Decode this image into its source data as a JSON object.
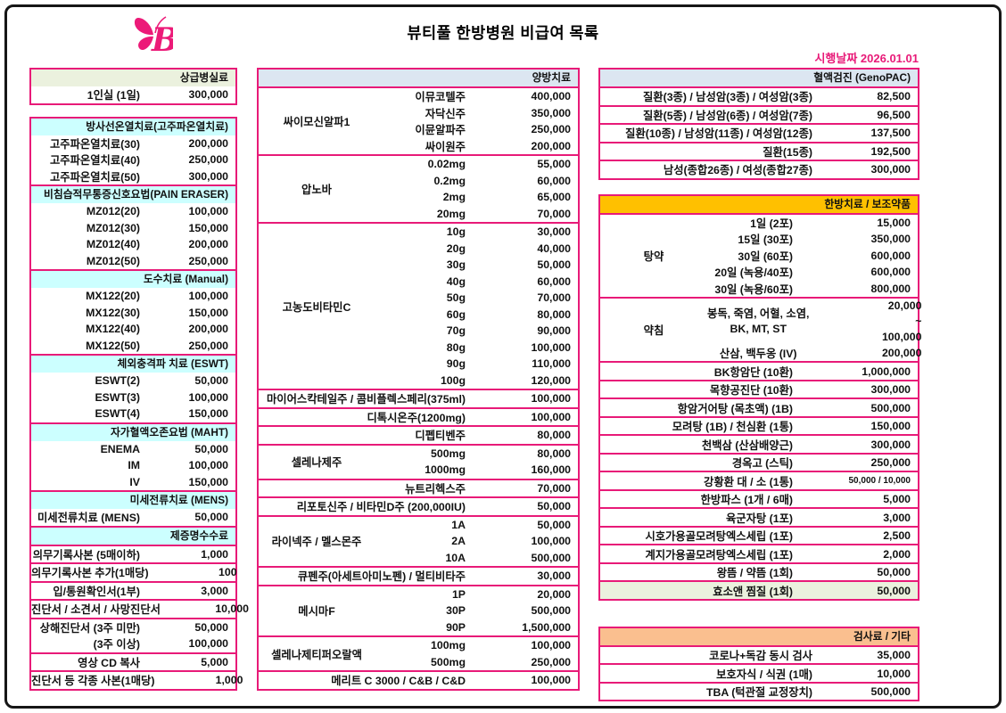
{
  "page": {
    "title": "뷰티풀 한방병원 비급여 목록",
    "effective_date_label": "시행날짜",
    "effective_date": "2026.01.01"
  },
  "colors": {
    "table_border": "#e81a78",
    "accent_text": "#e81a78",
    "logo_pink": "#ec1a78",
    "green": "#ebf1de",
    "cyan": "#ccffff",
    "blue": "#dce6f1",
    "orange": "#ffc000",
    "salmon": "#fabf8f",
    "text": "#111111"
  },
  "columns": [
    {
      "id": "left",
      "tables": [
        {
          "val": "93px",
          "blocks": [
            {
              "t": "sec",
              "h": "상급병실료",
              "bg": "green",
              "rows": [
                {
                  "l": "1인실 (1일)",
                  "v": "300,000"
                }
              ]
            }
          ]
        },
        {
          "val": "93px",
          "mt": 13,
          "blocks": [
            {
              "t": "sec",
              "h": "방사선온열치료(고주파온열치료)",
              "bg": "cyan",
              "rows": [
                {
                  "l": "고주파온열치료(30)",
                  "v": "200,000"
                },
                {
                  "l": "고주파온열치료(40)",
                  "v": "250,000"
                },
                {
                  "l": "고주파온열치료(50)",
                  "v": "300,000"
                }
              ]
            },
            {
              "t": "sec",
              "h": "비침습적무통증신호요법(PAIN ERASER)",
              "bg": "cyan",
              "rows": [
                {
                  "l": "MZ012(20)",
                  "v": "100,000"
                },
                {
                  "l": "MZ012(30)",
                  "v": "150,000"
                },
                {
                  "l": "MZ012(40)",
                  "v": "200,000"
                },
                {
                  "l": "MZ012(50)",
                  "v": "250,000"
                }
              ]
            },
            {
              "t": "sec",
              "h": "도수치료 (Manual)",
              "bg": "cyan",
              "rows": [
                {
                  "l": "MX122(20)",
                  "v": "100,000"
                },
                {
                  "l": "MX122(30)",
                  "v": "150,000"
                },
                {
                  "l": "MX122(40)",
                  "v": "200,000"
                },
                {
                  "l": "MX122(50)",
                  "v": "250,000"
                }
              ]
            },
            {
              "t": "sec",
              "h": "체외충격파 치료 (ESWT)",
              "bg": "cyan",
              "rows": [
                {
                  "l": "ESWT(2)",
                  "v": "50,000"
                },
                {
                  "l": "ESWT(3)",
                  "v": "100,000"
                },
                {
                  "l": "ESWT(4)",
                  "v": "150,000"
                }
              ]
            },
            {
              "t": "sec",
              "h": "자가혈액오존요법 (MAHT)",
              "bg": "cyan",
              "rows": [
                {
                  "l": "ENEMA",
                  "v": "50,000"
                },
                {
                  "l": "IM",
                  "v": "100,000"
                },
                {
                  "l": "IV",
                  "v": "150,000"
                }
              ]
            },
            {
              "t": "sec",
              "h": "미세전류치료 (MENS)",
              "bg": "cyan",
              "rows": [
                {
                  "l": "미세전류치료 (MENS)",
                  "v": "50,000"
                }
              ]
            },
            {
              "t": "h",
              "text": "제증명수수료",
              "bg": "cyan"
            },
            {
              "t": "r",
              "l": "의무기록사본 (5매이하)",
              "v": "1,000"
            },
            {
              "t": "r",
              "l": "의무기록사본 추가(1매당)",
              "v": "100"
            },
            {
              "t": "r",
              "l": "입/통원확인서(1부)",
              "v": "3,000"
            },
            {
              "t": "r",
              "l": "진단서 / 소견서 / 사망진단서",
              "v": "10,000"
            },
            {
              "t": "rs",
              "rows": [
                {
                  "l": "상해진단서 (3주 미만)",
                  "v": "50,000"
                },
                {
                  "l": "(3주 이상)",
                  "v": "100,000"
                }
              ]
            },
            {
              "t": "r",
              "l": "영상 CD 복사",
              "v": "5,000"
            },
            {
              "t": "r",
              "l": "진단서 등 각종 사본(1매당)",
              "v": "1,000"
            }
          ]
        }
      ]
    },
    {
      "id": "mid",
      "tables": [
        {
          "val": "112px",
          "grp": "130px",
          "blocks": [
            {
              "t": "h",
              "text": "양방치료",
              "bg": "blue"
            },
            {
              "t": "g",
              "name": "싸이모신알파1",
              "items": [
                {
                  "l": "이뮤코텔주",
                  "v": "400,000"
                },
                {
                  "l": "자닥신주",
                  "v": "350,000"
                },
                {
                  "l": "이뮨알파주",
                  "v": "250,000"
                },
                {
                  "l": "싸이원주",
                  "v": "200,000"
                }
              ]
            },
            {
              "t": "g",
              "name": "압노바",
              "items": [
                {
                  "l": "0.02mg",
                  "v": "55,000"
                },
                {
                  "l": "0.2mg",
                  "v": "60,000"
                },
                {
                  "l": "2mg",
                  "v": "65,000"
                },
                {
                  "l": "20mg",
                  "v": "70,000"
                }
              ]
            },
            {
              "t": "g",
              "name": "고농도비타민C",
              "items": [
                {
                  "l": "10g",
                  "v": "30,000"
                },
                {
                  "l": "20g",
                  "v": "40,000"
                },
                {
                  "l": "30g",
                  "v": "50,000"
                },
                {
                  "l": "40g",
                  "v": "60,000"
                },
                {
                  "l": "50g",
                  "v": "70,000"
                },
                {
                  "l": "60g",
                  "v": "80,000"
                },
                {
                  "l": "70g",
                  "v": "90,000"
                },
                {
                  "l": "80g",
                  "v": "100,000"
                },
                {
                  "l": "90g",
                  "v": "110,000"
                },
                {
                  "l": "100g",
                  "v": "120,000"
                }
              ]
            },
            {
              "t": "r",
              "l": "마이어스칵테일주 / 콤비플렉스페리(375ml)",
              "v": "100,000"
            },
            {
              "t": "r",
              "l": "디톡시온주(1200mg)",
              "v": "100,000"
            },
            {
              "t": "r",
              "l": "디펩티벤주",
              "v": "80,000"
            },
            {
              "t": "g",
              "name": "셀레나제주",
              "items": [
                {
                  "l": "500mg",
                  "v": "80,000"
                },
                {
                  "l": "1000mg",
                  "v": "160,000"
                }
              ]
            },
            {
              "t": "r",
              "l": "뉴트리헥스주",
              "v": "70,000"
            },
            {
              "t": "r",
              "l": "리포토신주 / 비타민D주 (200,000IU)",
              "v": "50,000"
            },
            {
              "t": "g",
              "name": "라이넥주 / 멜스몬주",
              "items": [
                {
                  "l": "1A",
                  "v": "50,000"
                },
                {
                  "l": "2A",
                  "v": "100,000"
                },
                {
                  "l": "10A",
                  "v": "500,000"
                }
              ]
            },
            {
              "t": "r",
              "l": "큐펜주(아세트아미노펜) / 멀티비타주",
              "v": "30,000"
            },
            {
              "t": "g",
              "name": "메시마F",
              "items": [
                {
                  "l": "1P",
                  "v": "20,000"
                },
                {
                  "l": "30P",
                  "v": "500,000"
                },
                {
                  "l": "90P",
                  "v": "1,500,000"
                }
              ]
            },
            {
              "t": "g",
              "name": "셀레나제티퍼오랄액",
              "items": [
                {
                  "l": "100mg",
                  "v": "100,000"
                },
                {
                  "l": "500mg",
                  "v": "250,000"
                }
              ]
            },
            {
              "t": "r",
              "l": "메리트 C 3000 / C&B / C&D",
              "v": "100,000"
            }
          ]
        }
      ]
    },
    {
      "id": "right",
      "tables": [
        {
          "val": "104px",
          "blocks": [
            {
              "t": "h",
              "text": "혈액검진 (GenoPAC)",
              "bg": "blue"
            },
            {
              "t": "r",
              "l": "질환(3종) / 남성암(3종) / 여성암(3종)",
              "v": "82,500"
            },
            {
              "t": "r",
              "l": "질환(5종) / 남성암(6종) / 여성암(7종)",
              "v": "96,500"
            },
            {
              "t": "r",
              "l": "질환(10종) / 남성암(11종) / 여성암(12종)",
              "v": "137,500"
            },
            {
              "t": "r",
              "l": "질환(15종)",
              "v": "192,500"
            },
            {
              "t": "r",
              "l": "남성(종합26종) / 여성(종합27종)",
              "v": "300,000"
            }
          ]
        },
        {
          "val": "126px",
          "grp": "120px",
          "mt": 16,
          "blocks": [
            {
              "t": "h",
              "text": "한방치료 / 보조약품",
              "bg": "orange"
            },
            {
              "t": "g",
              "name": "탕약",
              "items": [
                {
                  "l": "1일 (2포)",
                  "v": "15,000"
                },
                {
                  "l": "15일 (30포)",
                  "v": "350,000"
                },
                {
                  "l": "30일 (60포)",
                  "v": "600,000"
                },
                {
                  "l": "20일 (녹용/40포)",
                  "v": "600,000"
                },
                {
                  "l": "30일 (녹용/60포)",
                  "v": "800,000"
                }
              ]
            },
            {
              "t": "g",
              "name": "약침",
              "items": [
                {
                  "l": [
                    "봉독, 죽염, 어혈, 소염,",
                    "BK, MT, ST"
                  ],
                  "v": [
                    "20,000",
                    "~",
                    "100,000"
                  ],
                  "center": true
                },
                {
                  "l": "산삼, 백두옹 (IV)",
                  "v": "200,000",
                  "center": true
                }
              ]
            },
            {
              "t": "r",
              "l": "BK항암단 (10환)",
              "v": "1,000,000"
            },
            {
              "t": "r",
              "l": "목향공진단 (10환)",
              "v": "300,000"
            },
            {
              "t": "r",
              "l": "항암거어탕 (목초액) (1B)",
              "v": "500,000"
            },
            {
              "t": "r",
              "l": "모려탕 (1B) / 천심환 (1통)",
              "v": "150,000"
            },
            {
              "t": "r",
              "l": "천백삼 (산삼배양근)",
              "v": "300,000"
            },
            {
              "t": "r",
              "l": "경옥고 (스틱)",
              "v": "250,000"
            },
            {
              "t": "r",
              "l": "강황환 대 / 소 (1통)",
              "v": "50,000 / 10,000",
              "small": true
            },
            {
              "t": "r",
              "l": "한방파스 (1개 / 6매)",
              "v": "5,000"
            },
            {
              "t": "r",
              "l": "육군자탕 (1포)",
              "v": "3,000"
            },
            {
              "t": "r",
              "l": "시호가용골모려탕엑스세립 (1포)",
              "v": "2,500"
            },
            {
              "t": "r",
              "l": "계지가용골모려탕엑스세립 (1포)",
              "v": "2,000"
            },
            {
              "t": "r",
              "l": "왕뜸 / 약뜸 (1회)",
              "v": "50,000"
            },
            {
              "t": "r",
              "l": "효소앤 찜질 (1회)",
              "v": "50,000",
              "bg": "green"
            }
          ]
        },
        {
          "val": "104px",
          "mt": 29,
          "blocks": [
            {
              "t": "h",
              "text": "검사료 / 기타",
              "bg": "salmon"
            },
            {
              "t": "r",
              "l": "코로나+독감 동시 검사",
              "v": "35,000"
            },
            {
              "t": "r",
              "l": "보호자식 / 식권 (1매)",
              "v": "10,000"
            },
            {
              "t": "r",
              "l": "TBA (턱관절 교정장치)",
              "v": "500,000"
            }
          ]
        }
      ]
    }
  ]
}
